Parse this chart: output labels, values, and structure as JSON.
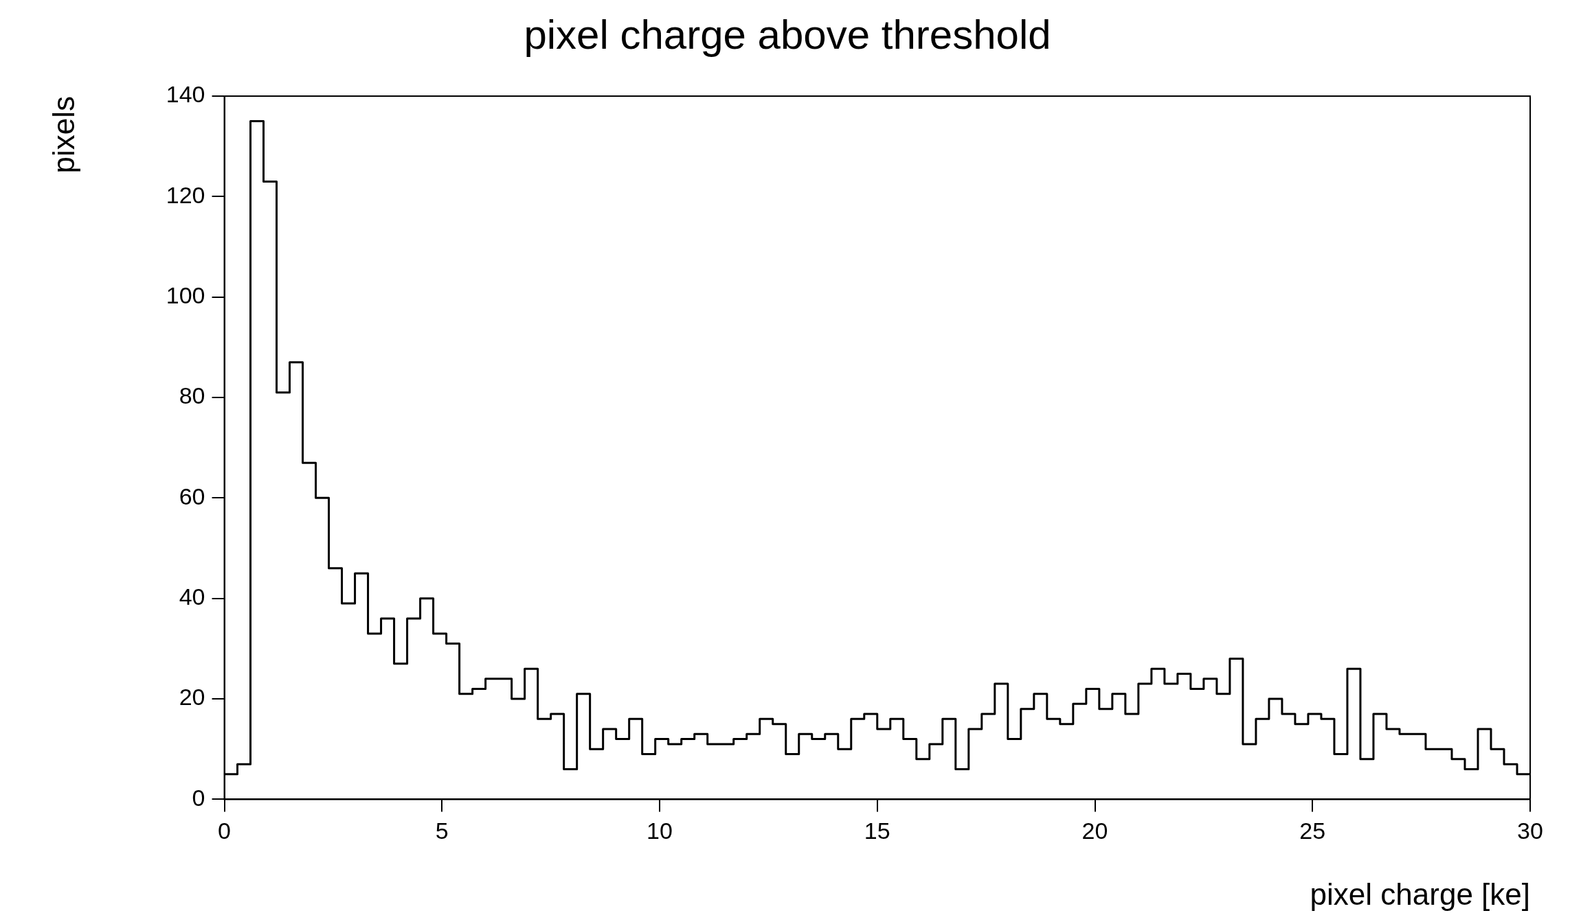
{
  "chart_data": {
    "type": "histogram",
    "title": "pixel charge above threshold",
    "xlabel": "pixel charge [ke]",
    "ylabel": "pixels",
    "bins": [
      0,
      0.3,
      0.6,
      0.9,
      1.2,
      1.5,
      1.8,
      2.1,
      2.4,
      2.7,
      3,
      3.3,
      3.6,
      3.9,
      4.2,
      4.5,
      4.8,
      5.1,
      5.4,
      5.7,
      6,
      6.3,
      6.6,
      6.9,
      7.2,
      7.5,
      7.8,
      8.1,
      8.4,
      8.7,
      9,
      9.3,
      9.6,
      9.9,
      10.2,
      10.5,
      10.8,
      11.1,
      11.4,
      11.7,
      12,
      12.3,
      12.6,
      12.9,
      13.2,
      13.5,
      13.8,
      14.1,
      14.4,
      14.7,
      15,
      15.3,
      15.6,
      15.9,
      16.2,
      16.5,
      16.8,
      17.1,
      17.4,
      17.7,
      18,
      18.3,
      18.6,
      18.9,
      19.2,
      19.5,
      19.8,
      20.1,
      20.4,
      20.7,
      21,
      21.3,
      21.6,
      21.9,
      22.2,
      22.5,
      22.8,
      23.1,
      23.4,
      23.7,
      24,
      24.3,
      24.6,
      24.9,
      25.2,
      25.5,
      25.8,
      26.1,
      26.4,
      26.7,
      27,
      27.3,
      27.6,
      27.9,
      28.2,
      28.5,
      28.8,
      29.1,
      29.4,
      29.7,
      30
    ],
    "values": [
      5,
      7,
      135,
      123,
      81,
      87,
      67,
      60,
      46,
      39,
      45,
      33,
      36,
      27,
      36,
      40,
      33,
      31,
      21,
      22,
      24,
      24,
      20,
      26,
      16,
      17,
      6,
      21,
      10,
      14,
      12,
      16,
      9,
      12,
      11,
      12,
      13,
      11,
      11,
      12,
      13,
      16,
      15,
      9,
      13,
      12,
      13,
      10,
      16,
      17,
      14,
      16,
      12,
      8,
      11,
      16,
      6,
      14,
      17,
      23,
      12,
      18,
      21,
      16,
      15,
      19,
      22,
      18,
      21,
      17,
      23,
      26,
      23,
      25,
      22,
      24,
      21,
      28,
      11,
      16,
      20,
      17,
      15,
      17,
      16,
      9,
      26,
      8,
      17,
      14,
      13,
      13,
      10,
      10,
      8,
      6,
      14,
      10,
      7,
      5
    ],
    "color": "#000000",
    "xlim": [
      0,
      30
    ],
    "xticks": [
      0,
      5,
      10,
      15,
      20,
      25,
      30
    ],
    "ylim": [
      0,
      140
    ],
    "yticks": [
      0,
      20,
      40,
      60,
      80,
      100,
      120,
      140
    ],
    "grid": false,
    "legend": false
  }
}
